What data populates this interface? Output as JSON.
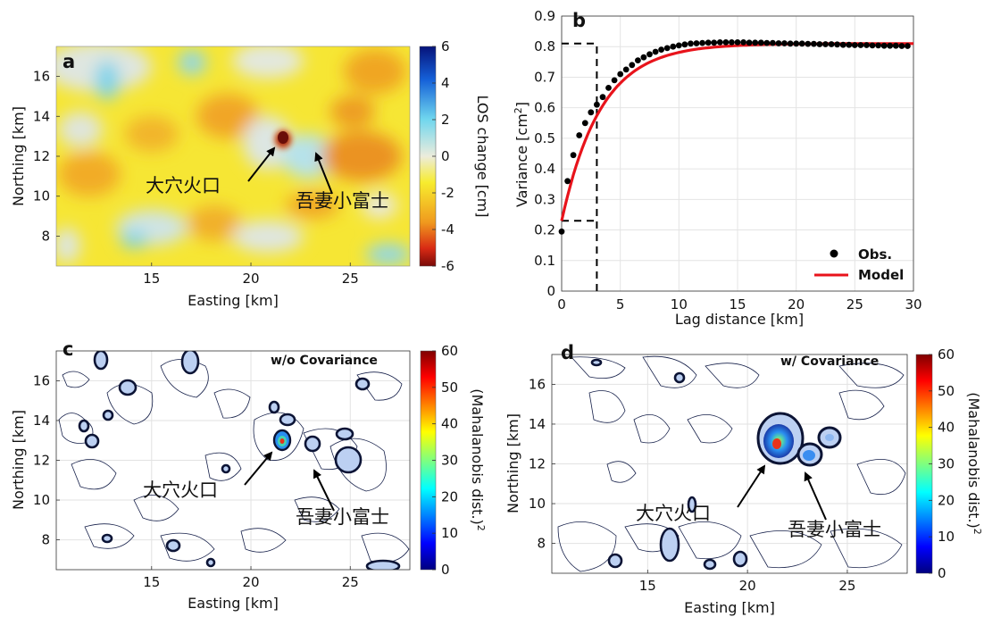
{
  "chart_data": [
    {
      "panel": "a",
      "type": "heatmap",
      "xlabel": "Easting [km]",
      "ylabel": "Northing [km]",
      "xlim": [
        10.2,
        28
      ],
      "ylim": [
        6.5,
        17.5
      ],
      "xticks": [
        15,
        20,
        25
      ],
      "yticks": [
        8,
        10,
        12,
        14,
        16
      ],
      "colorbar": {
        "label": "LOS change [cm]",
        "range": [
          -6,
          6
        ],
        "ticks": [
          6,
          4,
          2,
          0,
          -2,
          -4,
          -6
        ],
        "colormap": "jet-like (dark red low, dark blue high)"
      },
      "annotations": [
        {
          "text": "大穴火口",
          "x": 21.4,
          "y": 12.8
        },
        {
          "text": "吾妻小富士",
          "x": 22.9,
          "y": 12.3
        }
      ]
    },
    {
      "panel": "b",
      "type": "scatter",
      "xlabel": "Lag distance [km]",
      "ylabel": "Variance [cm²]",
      "xlim": [
        0,
        30
      ],
      "ylim": [
        0,
        0.9
      ],
      "xticks": [
        0,
        5,
        10,
        15,
        20,
        25,
        30
      ],
      "yticks": [
        0,
        0.1,
        0.2,
        0.3,
        0.4,
        0.5,
        0.6,
        0.7,
        0.8,
        0.9
      ],
      "grid": true,
      "legend": "bottom-right",
      "series": [
        {
          "name": "Obs.",
          "kind": "points",
          "x": [
            0,
            0.5,
            1,
            1.5,
            2,
            2.5,
            3,
            3.5,
            4,
            4.5,
            5,
            5.5,
            6,
            6.5,
            7,
            7.5,
            8,
            8.5,
            9,
            9.5,
            10,
            10.5,
            11,
            11.5,
            12,
            12.5,
            13,
            13.5,
            14,
            14.5,
            15,
            15.5,
            16,
            16.5,
            17,
            17.5,
            18,
            18.5,
            19,
            19.5,
            20,
            20.5,
            21,
            21.5,
            22,
            22.5,
            23,
            23.5,
            24,
            24.5,
            25,
            25.5,
            26,
            26.5,
            27,
            27.5,
            28,
            28.5,
            29,
            29.5
          ],
          "y": [
            0.195,
            0.36,
            0.445,
            0.51,
            0.55,
            0.585,
            0.61,
            0.635,
            0.665,
            0.69,
            0.71,
            0.725,
            0.74,
            0.755,
            0.765,
            0.775,
            0.783,
            0.79,
            0.795,
            0.8,
            0.804,
            0.807,
            0.81,
            0.811,
            0.812,
            0.813,
            0.813,
            0.814,
            0.814,
            0.814,
            0.814,
            0.814,
            0.813,
            0.813,
            0.813,
            0.812,
            0.812,
            0.811,
            0.811,
            0.81,
            0.81,
            0.81,
            0.809,
            0.809,
            0.808,
            0.808,
            0.808,
            0.807,
            0.806,
            0.806,
            0.805,
            0.805,
            0.805,
            0.804,
            0.804,
            0.803,
            0.803,
            0.803,
            0.802,
            0.802
          ]
        },
        {
          "name": "Model",
          "kind": "line",
          "color": "#e8131b",
          "formula": "nugget + sill*(1 - exp(-3h/range))",
          "nugget": 0.23,
          "sill": 0.58,
          "range_km": 10
        }
      ],
      "reference_lines": {
        "x_at": 3,
        "y_low": 0.23,
        "y_high": 0.81
      }
    },
    {
      "panel": "c",
      "type": "heatmap",
      "method": "w/o Covariance",
      "xlabel": "Easting [km]",
      "ylabel": "Northing [km]",
      "xlim": [
        10.2,
        28
      ],
      "ylim": [
        6.5,
        17.5
      ],
      "xticks": [
        15,
        20,
        25
      ],
      "yticks": [
        8,
        10,
        12,
        14,
        16
      ],
      "colorbar": {
        "label": "(Mahalanobis dist.)²",
        "range": [
          0,
          60
        ],
        "ticks": [
          60,
          50,
          40,
          30,
          20,
          10,
          0
        ]
      },
      "annotations": [
        {
          "text": "大穴火口",
          "x": 21.4,
          "y": 12.8
        },
        {
          "text": "吾妻小富士",
          "x": 22.9,
          "y": 12.3
        }
      ]
    },
    {
      "panel": "d",
      "type": "heatmap",
      "method": "w/ Covariance",
      "xlabel": "Easting [km]",
      "ylabel": "Northing [km]",
      "xlim": [
        10.2,
        28
      ],
      "ylim": [
        6.5,
        17.5
      ],
      "xticks": [
        15,
        20,
        25
      ],
      "yticks": [
        8,
        10,
        12,
        14,
        16
      ],
      "colorbar": {
        "label": "(Mahalanobis dist.)²",
        "range": [
          0,
          60
        ],
        "ticks": [
          60,
          50,
          40,
          30,
          20,
          10,
          0
        ]
      },
      "annotations": [
        {
          "text": "大穴火口",
          "x": 21.4,
          "y": 12.8
        },
        {
          "text": "吾妻小富士",
          "x": 22.9,
          "y": 12.3
        }
      ]
    }
  ],
  "labels": {
    "a": "a",
    "b": "b",
    "c": "c",
    "d": "d",
    "easting": "Easting [km]",
    "northing": "Northing [km]",
    "los": "LOS change [cm]",
    "lag": "Lag distance [km]",
    "variance": "Variance [cm",
    "variance_sup": "2",
    "variance_close": "]",
    "obs": "Obs.",
    "model": "Model",
    "wo_cov": "w/o Covariance",
    "w_cov": "w/ Covariance",
    "maha": "(Mahalanobis dist.)",
    "maha_sup": "2",
    "crater": "大穴火口",
    "fuji": "吾妻小富士"
  },
  "colors": {
    "map_yellow": "#f5e533",
    "map_orange": "#ee9a22",
    "map_blue": "#7fd3ea",
    "model_red": "#e8131b",
    "contour_navy": "#16204a"
  }
}
